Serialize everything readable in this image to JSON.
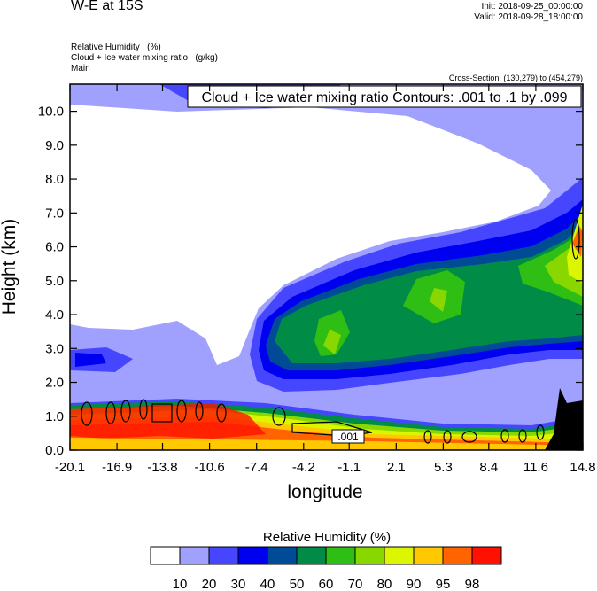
{
  "header": {
    "title": "W-E at 15S",
    "init": "Init: 2018-09-25_00:00:00",
    "valid": "Valid: 2018-09-28_18:00:00",
    "fields": [
      "Relative Humidity   (%)",
      "Cloud + Ice water mixing ratio   (g/kg)",
      "Main"
    ],
    "cross_section": "Cross-Section: (130,279) to (454,279)"
  },
  "chart_data": {
    "type": "heatmap",
    "title": "W-E at 15S",
    "contour_label": "Cloud + Ice water mixing ratio Contours: .001 to .1 by .099",
    "contour_value_label": ".001",
    "xlabel": "longitude",
    "ylabel": "Height (km)",
    "xlim": [
      -20.1,
      14.8
    ],
    "ylim": [
      0,
      10.8
    ],
    "xticks": [
      "-20.1",
      "-16.9",
      "-13.8",
      "-10.6",
      "-7.4",
      "-4.2",
      "-1.1",
      "2.1",
      "5.3",
      "8.4",
      "11.6",
      "14.8"
    ],
    "yticks": [
      "0.0",
      "1.0",
      "2.0",
      "3.0",
      "4.0",
      "5.0",
      "6.0",
      "7.0",
      "8.0",
      "9.0",
      "10.0"
    ],
    "colorbar": {
      "title": "Relative Humidity  (%)",
      "levels": [
        "10",
        "20",
        "30",
        "40",
        "50",
        "60",
        "70",
        "80",
        "90",
        "95",
        "98"
      ],
      "colors": [
        "#ffffff",
        "#a0a0ff",
        "#4646ff",
        "#0000f0",
        "#004b96",
        "#008c46",
        "#2ebe14",
        "#88d800",
        "#dcf500",
        "#ffc800",
        "#ff6400",
        "#ff1000"
      ]
    }
  }
}
